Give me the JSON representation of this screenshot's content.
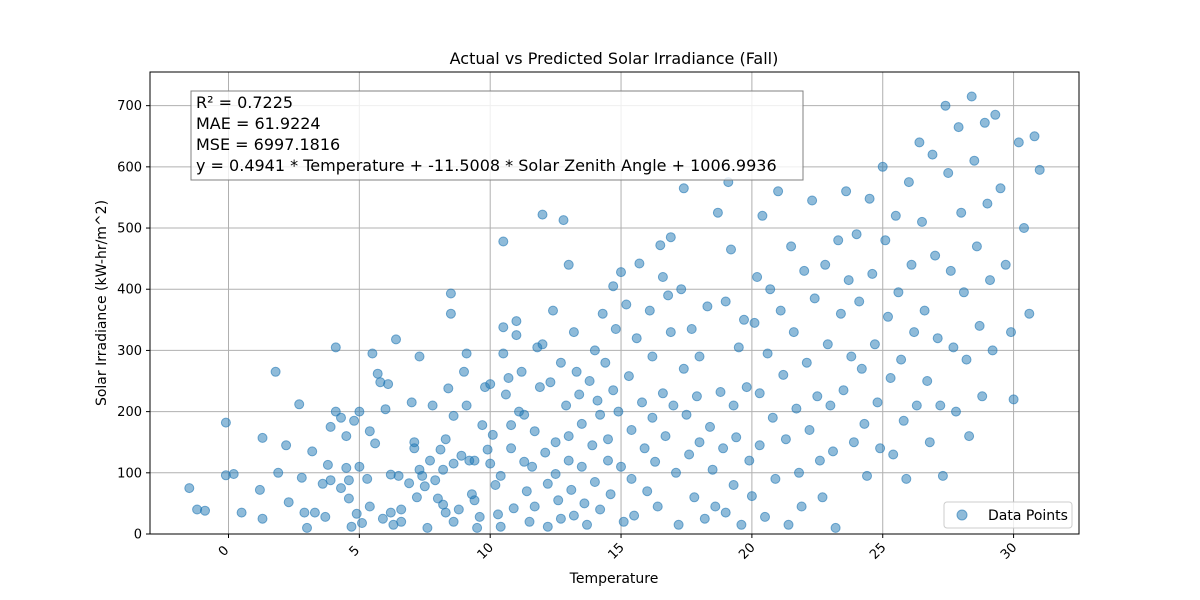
{
  "chart_data": {
    "type": "scatter",
    "title": "Actual vs Predicted Solar Irradiance (Fall)",
    "xlabel": "Temperature",
    "ylabel": "Solar Irradiance (kW-hr/m^2)",
    "xlim": [
      -3.0,
      32.5
    ],
    "ylim": [
      0,
      755
    ],
    "xticks": [
      0,
      5,
      10,
      15,
      20,
      25,
      30
    ],
    "yticks": [
      0,
      100,
      200,
      300,
      400,
      500,
      600,
      700
    ],
    "grid": true,
    "color": "#1f77b4",
    "legend": {
      "position": "lower-right",
      "label": "Data Points"
    },
    "stats": {
      "r2": "R² = 0.7225",
      "mae": "MAE = 61.9224",
      "mse": "MSE = 6997.1816",
      "equation": "y = 0.4941 * Temperature + -11.5008 * Solar Zenith Angle + 1006.9936"
    },
    "points": [
      [
        -1.5,
        75
      ],
      [
        -1.2,
        40
      ],
      [
        -0.9,
        38
      ],
      [
        -0.1,
        182
      ],
      [
        -0.1,
        96
      ],
      [
        0.2,
        98
      ],
      [
        0.5,
        35
      ],
      [
        1.2,
        72
      ],
      [
        1.3,
        157
      ],
      [
        1.3,
        25
      ],
      [
        1.8,
        265
      ],
      [
        1.9,
        100
      ],
      [
        2.2,
        145
      ],
      [
        2.3,
        52
      ],
      [
        2.7,
        212
      ],
      [
        2.8,
        92
      ],
      [
        2.9,
        35
      ],
      [
        3.0,
        10
      ],
      [
        3.2,
        135
      ],
      [
        3.3,
        35
      ],
      [
        3.6,
        82
      ],
      [
        3.7,
        28
      ],
      [
        3.8,
        113
      ],
      [
        3.9,
        175
      ],
      [
        3.9,
        88
      ],
      [
        4.1,
        305
      ],
      [
        4.1,
        200
      ],
      [
        4.3,
        190
      ],
      [
        4.3,
        75
      ],
      [
        4.5,
        160
      ],
      [
        4.5,
        108
      ],
      [
        4.6,
        88
      ],
      [
        4.6,
        58
      ],
      [
        4.7,
        12
      ],
      [
        4.8,
        185
      ],
      [
        4.9,
        33
      ],
      [
        5.0,
        200
      ],
      [
        5.0,
        110
      ],
      [
        5.1,
        18
      ],
      [
        5.3,
        90
      ],
      [
        5.4,
        168
      ],
      [
        5.4,
        45
      ],
      [
        5.5,
        295
      ],
      [
        5.6,
        148
      ],
      [
        5.7,
        262
      ],
      [
        5.8,
        248
      ],
      [
        5.9,
        25
      ],
      [
        6.0,
        204
      ],
      [
        6.1,
        245
      ],
      [
        6.2,
        97
      ],
      [
        6.2,
        35
      ],
      [
        6.3,
        15
      ],
      [
        6.4,
        318
      ],
      [
        6.5,
        95
      ],
      [
        6.6,
        40
      ],
      [
        6.6,
        20
      ],
      [
        6.9,
        83
      ],
      [
        7.0,
        215
      ],
      [
        7.1,
        150
      ],
      [
        7.1,
        140
      ],
      [
        7.2,
        60
      ],
      [
        7.3,
        290
      ],
      [
        7.3,
        105
      ],
      [
        7.4,
        95
      ],
      [
        7.5,
        78
      ],
      [
        7.6,
        10
      ],
      [
        7.7,
        120
      ],
      [
        7.8,
        210
      ],
      [
        7.9,
        88
      ],
      [
        8.0,
        58
      ],
      [
        8.1,
        138
      ],
      [
        8.2,
        105
      ],
      [
        8.2,
        48
      ],
      [
        8.3,
        155
      ],
      [
        8.3,
        35
      ],
      [
        8.4,
        238
      ],
      [
        8.5,
        393
      ],
      [
        8.5,
        360
      ],
      [
        8.6,
        193
      ],
      [
        8.6,
        115
      ],
      [
        8.6,
        20
      ],
      [
        8.8,
        40
      ],
      [
        8.9,
        128
      ],
      [
        9.0,
        265
      ],
      [
        9.1,
        295
      ],
      [
        9.1,
        210
      ],
      [
        9.2,
        120
      ],
      [
        9.3,
        65
      ],
      [
        9.4,
        120
      ],
      [
        9.4,
        55
      ],
      [
        9.5,
        10
      ],
      [
        9.6,
        28
      ],
      [
        9.7,
        178
      ],
      [
        9.8,
        240
      ],
      [
        9.9,
        138
      ],
      [
        10.0,
        245
      ],
      [
        10.0,
        115
      ],
      [
        10.1,
        162
      ],
      [
        10.2,
        80
      ],
      [
        10.3,
        32
      ],
      [
        10.4,
        95
      ],
      [
        10.4,
        12
      ],
      [
        10.5,
        295
      ],
      [
        10.5,
        478
      ],
      [
        10.5,
        338
      ],
      [
        10.6,
        228
      ],
      [
        10.7,
        255
      ],
      [
        10.8,
        178
      ],
      [
        10.8,
        140
      ],
      [
        10.9,
        42
      ],
      [
        11.0,
        348
      ],
      [
        11.0,
        325
      ],
      [
        11.1,
        200
      ],
      [
        11.2,
        265
      ],
      [
        11.3,
        195
      ],
      [
        11.3,
        118
      ],
      [
        11.4,
        70
      ],
      [
        11.5,
        20
      ],
      [
        11.6,
        110
      ],
      [
        11.7,
        168
      ],
      [
        11.7,
        45
      ],
      [
        11.8,
        305
      ],
      [
        11.9,
        240
      ],
      [
        12.0,
        522
      ],
      [
        12.0,
        310
      ],
      [
        12.1,
        133
      ],
      [
        12.2,
        82
      ],
      [
        12.2,
        12
      ],
      [
        12.3,
        248
      ],
      [
        12.4,
        365
      ],
      [
        12.5,
        150
      ],
      [
        12.5,
        98
      ],
      [
        12.6,
        55
      ],
      [
        12.7,
        280
      ],
      [
        12.7,
        25
      ],
      [
        12.8,
        513
      ],
      [
        12.9,
        210
      ],
      [
        13.0,
        440
      ],
      [
        13.0,
        160
      ],
      [
        13.0,
        120
      ],
      [
        13.1,
        72
      ],
      [
        13.2,
        330
      ],
      [
        13.2,
        30
      ],
      [
        13.3,
        265
      ],
      [
        13.4,
        228
      ],
      [
        13.5,
        180
      ],
      [
        13.5,
        110
      ],
      [
        13.6,
        50
      ],
      [
        13.7,
        15
      ],
      [
        13.8,
        250
      ],
      [
        13.9,
        145
      ],
      [
        14.0,
        300
      ],
      [
        14.0,
        85
      ],
      [
        14.1,
        218
      ],
      [
        14.2,
        195
      ],
      [
        14.2,
        40
      ],
      [
        14.3,
        360
      ],
      [
        14.4,
        280
      ],
      [
        14.5,
        155
      ],
      [
        14.5,
        120
      ],
      [
        14.6,
        65
      ],
      [
        14.7,
        405
      ],
      [
        14.7,
        235
      ],
      [
        14.8,
        335
      ],
      [
        14.9,
        200
      ],
      [
        15.0,
        428
      ],
      [
        15.0,
        110
      ],
      [
        15.1,
        20
      ],
      [
        15.2,
        375
      ],
      [
        15.3,
        258
      ],
      [
        15.4,
        170
      ],
      [
        15.4,
        90
      ],
      [
        15.5,
        30
      ],
      [
        15.6,
        320
      ],
      [
        15.7,
        442
      ],
      [
        15.8,
        215
      ],
      [
        15.9,
        140
      ],
      [
        16.0,
        70
      ],
      [
        16.1,
        365
      ],
      [
        16.2,
        290
      ],
      [
        16.2,
        190
      ],
      [
        16.3,
        118
      ],
      [
        16.4,
        45
      ],
      [
        16.5,
        472
      ],
      [
        16.6,
        420
      ],
      [
        16.6,
        230
      ],
      [
        16.7,
        160
      ],
      [
        16.8,
        390
      ],
      [
        16.9,
        485
      ],
      [
        16.9,
        330
      ],
      [
        17.0,
        210
      ],
      [
        17.1,
        100
      ],
      [
        17.2,
        15
      ],
      [
        17.3,
        400
      ],
      [
        17.4,
        565
      ],
      [
        17.4,
        270
      ],
      [
        17.5,
        195
      ],
      [
        17.6,
        130
      ],
      [
        17.7,
        335
      ],
      [
        17.8,
        60
      ],
      [
        17.9,
        225
      ],
      [
        18.0,
        290
      ],
      [
        18.0,
        150
      ],
      [
        18.2,
        25
      ],
      [
        18.3,
        372
      ],
      [
        18.4,
        175
      ],
      [
        18.5,
        105
      ],
      [
        18.6,
        45
      ],
      [
        18.7,
        525
      ],
      [
        18.8,
        232
      ],
      [
        18.9,
        140
      ],
      [
        19.0,
        380
      ],
      [
        19.0,
        35
      ],
      [
        19.1,
        575
      ],
      [
        19.2,
        465
      ],
      [
        19.3,
        210
      ],
      [
        19.3,
        80
      ],
      [
        19.4,
        158
      ],
      [
        19.5,
        305
      ],
      [
        19.6,
        15
      ],
      [
        19.7,
        350
      ],
      [
        19.8,
        240
      ],
      [
        19.9,
        120
      ],
      [
        20.0,
        62
      ],
      [
        20.1,
        345
      ],
      [
        20.2,
        420
      ],
      [
        20.3,
        230
      ],
      [
        20.3,
        145
      ],
      [
        20.4,
        520
      ],
      [
        20.5,
        28
      ],
      [
        20.6,
        295
      ],
      [
        20.7,
        400
      ],
      [
        20.8,
        190
      ],
      [
        20.9,
        90
      ],
      [
        21.0,
        560
      ],
      [
        21.1,
        365
      ],
      [
        21.2,
        260
      ],
      [
        21.3,
        155
      ],
      [
        21.4,
        15
      ],
      [
        21.5,
        470
      ],
      [
        21.6,
        330
      ],
      [
        21.7,
        205
      ],
      [
        21.8,
        100
      ],
      [
        21.9,
        45
      ],
      [
        22.0,
        430
      ],
      [
        22.1,
        280
      ],
      [
        22.2,
        170
      ],
      [
        22.3,
        545
      ],
      [
        22.4,
        385
      ],
      [
        22.5,
        225
      ],
      [
        22.6,
        120
      ],
      [
        22.7,
        60
      ],
      [
        22.8,
        440
      ],
      [
        22.9,
        310
      ],
      [
        23.0,
        210
      ],
      [
        23.1,
        135
      ],
      [
        23.2,
        10
      ],
      [
        23.3,
        480
      ],
      [
        23.4,
        360
      ],
      [
        23.5,
        235
      ],
      [
        23.6,
        560
      ],
      [
        23.7,
        415
      ],
      [
        23.8,
        290
      ],
      [
        23.9,
        150
      ],
      [
        24.0,
        490
      ],
      [
        24.1,
        380
      ],
      [
        24.2,
        270
      ],
      [
        24.3,
        180
      ],
      [
        24.4,
        95
      ],
      [
        24.5,
        548
      ],
      [
        24.6,
        425
      ],
      [
        24.7,
        310
      ],
      [
        24.8,
        215
      ],
      [
        24.9,
        140
      ],
      [
        25.0,
        600
      ],
      [
        25.1,
        480
      ],
      [
        25.2,
        355
      ],
      [
        25.3,
        255
      ],
      [
        25.4,
        130
      ],
      [
        25.5,
        520
      ],
      [
        25.6,
        395
      ],
      [
        25.7,
        285
      ],
      [
        25.8,
        185
      ],
      [
        25.9,
        90
      ],
      [
        26.0,
        575
      ],
      [
        26.1,
        440
      ],
      [
        26.2,
        330
      ],
      [
        26.3,
        210
      ],
      [
        26.4,
        640
      ],
      [
        26.5,
        510
      ],
      [
        26.6,
        365
      ],
      [
        26.7,
        250
      ],
      [
        26.8,
        150
      ],
      [
        26.9,
        620
      ],
      [
        27.0,
        455
      ],
      [
        27.1,
        320
      ],
      [
        27.2,
        210
      ],
      [
        27.3,
        95
      ],
      [
        27.4,
        700
      ],
      [
        27.5,
        590
      ],
      [
        27.6,
        430
      ],
      [
        27.7,
        305
      ],
      [
        27.8,
        200
      ],
      [
        27.9,
        665
      ],
      [
        28.0,
        525
      ],
      [
        28.1,
        395
      ],
      [
        28.2,
        285
      ],
      [
        28.3,
        160
      ],
      [
        28.4,
        715
      ],
      [
        28.5,
        610
      ],
      [
        28.6,
        470
      ],
      [
        28.7,
        340
      ],
      [
        28.8,
        225
      ],
      [
        28.9,
        672
      ],
      [
        29.0,
        540
      ],
      [
        29.1,
        415
      ],
      [
        29.2,
        300
      ],
      [
        29.3,
        685
      ],
      [
        29.5,
        565
      ],
      [
        29.7,
        440
      ],
      [
        29.9,
        330
      ],
      [
        30.0,
        220
      ],
      [
        30.2,
        640
      ],
      [
        30.4,
        500
      ],
      [
        30.6,
        360
      ],
      [
        30.8,
        650
      ],
      [
        31.0,
        595
      ]
    ]
  }
}
